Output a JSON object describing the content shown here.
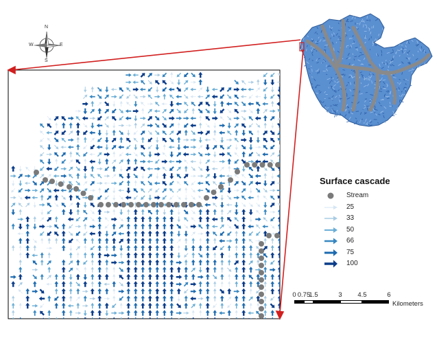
{
  "legend": {
    "title": "Surface cascade",
    "items": [
      {
        "label": "Stream",
        "symbol": "dot",
        "color": "#7a7a7a"
      },
      {
        "label": "25",
        "symbol": "arrow",
        "color": "#d6e6f4",
        "weight": 1
      },
      {
        "label": "33",
        "symbol": "arrow",
        "color": "#a9cce4",
        "weight": 1.5
      },
      {
        "label": "50",
        "symbol": "arrow",
        "color": "#6aaed6",
        "weight": 2
      },
      {
        "label": "66",
        "symbol": "arrow",
        "color": "#3787c0",
        "weight": 2.5
      },
      {
        "label": "75",
        "symbol": "arrow",
        "color": "#1c6aaf",
        "weight": 3
      },
      {
        "label": "100",
        "symbol": "arrow",
        "color": "#0b3d8a",
        "weight": 3.5
      }
    ]
  },
  "scalebar": {
    "ticks": [
      "0",
      "0.75",
      "1.5",
      "3",
      "4.5",
      "6"
    ],
    "tick_values": [
      0,
      0.75,
      1.5,
      3,
      4.5,
      6
    ],
    "units": "Kilometers"
  },
  "north_arrow": {
    "labels": {
      "n": "N",
      "s": "S",
      "e": "E",
      "w": "W"
    }
  },
  "overview_map": {
    "fill_color": "#5a8fd0",
    "stream_color": "#8a8a8a",
    "pointer_color": "#d21f1f"
  },
  "colors": {
    "frame": "#000000",
    "stream_dot": "#7a7a7a"
  }
}
